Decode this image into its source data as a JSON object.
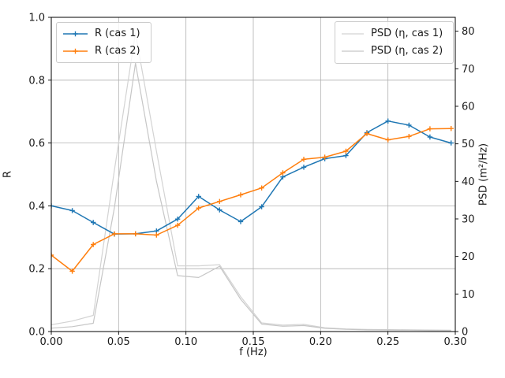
{
  "chart_data": {
    "type": "line",
    "title": "",
    "xlabel": "f (Hz)",
    "ylabel_left": "R",
    "ylabel_right": "PSD (m²/Hz)",
    "grid": true,
    "grid_color": "#b0b0b0",
    "spine_color": "#000000",
    "xlim": [
      0.0,
      0.3
    ],
    "ylim_left": [
      0.0,
      1.0
    ],
    "ylim_right": [
      0.0,
      83.7
    ],
    "xticks": {
      "values": [
        0.0,
        0.05,
        0.1,
        0.15,
        0.2,
        0.25,
        0.3
      ],
      "labels": [
        "0.00",
        "0.05",
        "0.10",
        "0.15",
        "0.20",
        "0.25",
        "0.30"
      ]
    },
    "yticks_left": {
      "values": [
        0.0,
        0.2,
        0.4,
        0.6,
        0.8,
        1.0
      ],
      "labels": [
        "0.0",
        "0.2",
        "0.4",
        "0.6",
        "0.8",
        "1.0"
      ]
    },
    "yticks_right": {
      "values": [
        0,
        10,
        20,
        30,
        40,
        50,
        60,
        70,
        80
      ],
      "labels": [
        "0",
        "10",
        "20",
        "30",
        "40",
        "50",
        "60",
        "70",
        "80"
      ]
    },
    "x": [
      0.0,
      0.0156,
      0.0312,
      0.0469,
      0.0625,
      0.0781,
      0.0938,
      0.1094,
      0.125,
      0.1406,
      0.1562,
      0.1719,
      0.1875,
      0.2031,
      0.2188,
      0.2344,
      0.25,
      0.2656,
      0.2812,
      0.2969
    ],
    "series": [
      {
        "name": "R (cas 1)",
        "axis": "left",
        "color": "#1f77b4",
        "marker": "plus",
        "line_width": 1.5,
        "values": [
          0.4,
          0.385,
          0.347,
          0.31,
          0.311,
          0.32,
          0.358,
          0.43,
          0.387,
          0.35,
          0.397,
          0.492,
          0.523,
          0.55,
          0.56,
          0.633,
          0.67,
          0.657,
          0.619,
          0.6
        ]
      },
      {
        "name": "R (cas 2)",
        "axis": "left",
        "color": "#ff7f0e",
        "marker": "plus",
        "line_width": 1.5,
        "values": [
          0.243,
          0.192,
          0.277,
          0.311,
          0.311,
          0.307,
          0.338,
          0.393,
          0.414,
          0.435,
          0.457,
          0.505,
          0.548,
          0.555,
          0.574,
          0.63,
          0.61,
          0.621,
          0.645,
          0.646
        ]
      },
      {
        "name": "PSD (η, cas 1)",
        "axis": "right",
        "color": "#d3d3d3",
        "marker": "none",
        "line_width": 1.2,
        "values": [
          1.8,
          2.8,
          4.3,
          43.0,
          79.5,
          48.0,
          17.5,
          17.5,
          17.8,
          9.3,
          2.3,
          1.7,
          1.9,
          1.0,
          0.7,
          0.55,
          0.5,
          0.45,
          0.4,
          0.35
        ]
      },
      {
        "name": "PSD (η, cas 2)",
        "axis": "right",
        "color": "#c6c6c6",
        "marker": "none",
        "line_width": 1.2,
        "values": [
          0.9,
          1.3,
          2.2,
          33.0,
          71.5,
          40.0,
          14.9,
          14.4,
          17.4,
          8.6,
          2.0,
          1.4,
          1.6,
          0.85,
          0.6,
          0.45,
          0.4,
          0.35,
          0.3,
          0.25
        ]
      }
    ],
    "legend_left": {
      "items": [
        {
          "label": "R (cas 1)"
        },
        {
          "label": "R (cas 2)"
        }
      ]
    },
    "legend_right": {
      "items": [
        {
          "label": "PSD (η, cas 1)"
        },
        {
          "label": "PSD (η, cas 2)"
        }
      ]
    }
  }
}
